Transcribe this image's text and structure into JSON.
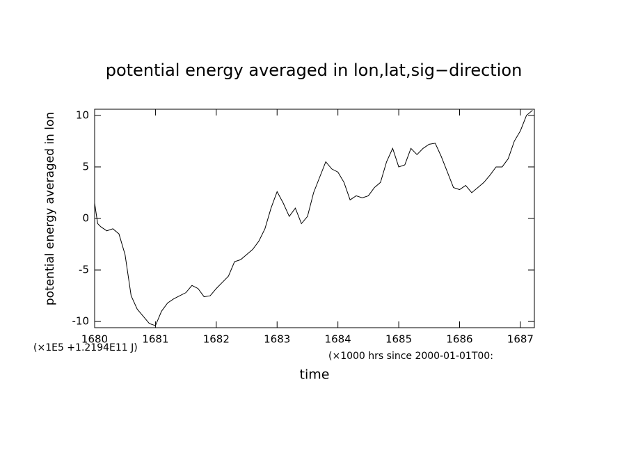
{
  "chart_data": {
    "type": "line",
    "title": "potential energy averaged in lon,lat,sig−direction",
    "y_label": "potential energy averaged in lon",
    "x_label": "time",
    "y_unit_note": "(×1E5 +1.2194E11 J)",
    "x_unit_note": "(×1000 hrs  since 2000-01-01T00:",
    "x": [
      1680.0,
      1680.05,
      1680.1,
      1680.2,
      1680.3,
      1680.4,
      1680.5,
      1680.6,
      1680.7,
      1680.8,
      1680.9,
      1681.0,
      1681.1,
      1681.2,
      1681.3,
      1681.4,
      1681.5,
      1681.6,
      1681.7,
      1681.8,
      1681.9,
      1682.0,
      1682.1,
      1682.2,
      1682.3,
      1682.4,
      1682.5,
      1682.6,
      1682.7,
      1682.8,
      1682.9,
      1683.0,
      1683.1,
      1683.2,
      1683.3,
      1683.4,
      1683.5,
      1683.6,
      1683.7,
      1683.8,
      1683.9,
      1684.0,
      1684.1,
      1684.2,
      1684.3,
      1684.4,
      1684.5,
      1684.6,
      1684.7,
      1684.8,
      1684.9,
      1685.0,
      1685.1,
      1685.2,
      1685.3,
      1685.4,
      1685.5,
      1685.6,
      1685.7,
      1685.8,
      1685.9,
      1686.0,
      1686.1,
      1686.2,
      1686.3,
      1686.4,
      1686.5,
      1686.6,
      1686.7,
      1686.8,
      1686.9,
      1687.0,
      1687.1,
      1687.2
    ],
    "series": [
      {
        "color": "#000000",
        "values": [
          1.5,
          -0.5,
          -0.8,
          -1.2,
          -1.0,
          -1.5,
          -3.5,
          -7.5,
          -8.8,
          -9.5,
          -10.2,
          -10.4,
          -9.0,
          -8.2,
          -7.8,
          -7.5,
          -7.2,
          -6.5,
          -6.8,
          -7.6,
          -7.5,
          -6.8,
          -6.2,
          -5.6,
          -4.2,
          -4.0,
          -3.5,
          -3.0,
          -2.2,
          -1.0,
          1.0,
          2.6,
          1.5,
          0.2,
          1.0,
          -0.5,
          0.2,
          2.5,
          4.0,
          5.5,
          4.8,
          4.5,
          3.5,
          1.8,
          2.2,
          2.0,
          2.2,
          3.0,
          3.5,
          5.5,
          6.8,
          5.0,
          5.2,
          6.8,
          6.2,
          6.8,
          7.2,
          7.3,
          6.0,
          4.5,
          3.0,
          2.8,
          3.2,
          2.5,
          3.0,
          3.5,
          4.2,
          5.0,
          5.0,
          5.8,
          7.5,
          8.5,
          10.0,
          10.5
        ]
      }
    ],
    "xlim": [
      1680,
      1687.23
    ],
    "xticks": [
      1680,
      1681,
      1682,
      1683,
      1684,
      1685,
      1686,
      1687
    ],
    "ylim": [
      -10.6,
      10.6
    ],
    "yticks": [
      -10,
      -5,
      0,
      5,
      10
    ]
  }
}
